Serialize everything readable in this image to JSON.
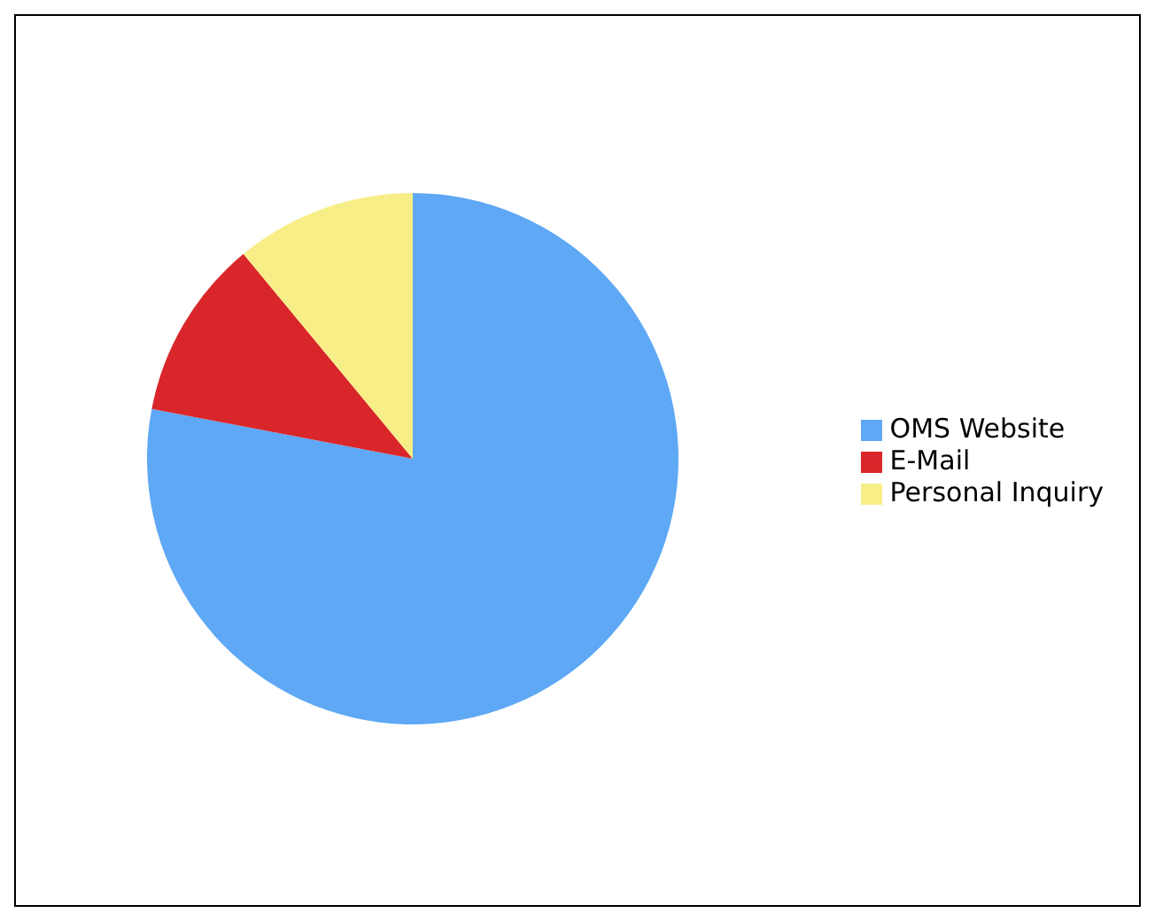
{
  "chart_data": {
    "type": "pie",
    "categories": [
      "OMS Website",
      "E-Mail",
      "Personal Inquiry"
    ],
    "values": [
      78,
      11,
      11
    ],
    "colors": [
      "#5ea8f5",
      "#d9262a",
      "#f8ee88"
    ],
    "legend": "right"
  }
}
